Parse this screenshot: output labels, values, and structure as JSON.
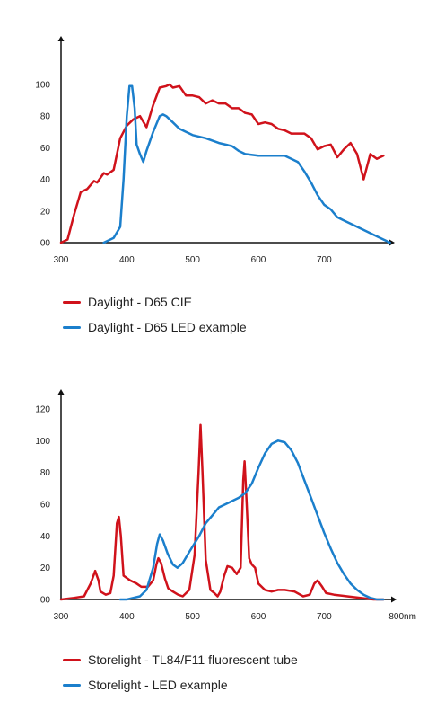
{
  "colors": {
    "red": "#d0121b",
    "blue": "#1b7fcc",
    "axis": "#111111"
  },
  "chart_data": [
    {
      "type": "line",
      "title": "",
      "xlabel": "",
      "ylabel": "",
      "xlim": [
        300,
        800
      ],
      "ylim": [
        0,
        100
      ],
      "xticks": [
        "300",
        "400",
        "500",
        "600",
        "700"
      ],
      "yticks": [
        "00",
        "20",
        "40",
        "60",
        "80",
        "100"
      ],
      "legend_position": "bottom",
      "series": [
        {
          "name": "Daylight - D65 CIE",
          "color": "red",
          "points": [
            [
              300,
              0
            ],
            [
              310,
              2
            ],
            [
              320,
              18
            ],
            [
              330,
              32
            ],
            [
              340,
              34
            ],
            [
              350,
              39
            ],
            [
              355,
              38
            ],
            [
              360,
              41
            ],
            [
              365,
              44
            ],
            [
              370,
              43
            ],
            [
              380,
              46
            ],
            [
              390,
              66
            ],
            [
              400,
              74
            ],
            [
              410,
              78
            ],
            [
              420,
              80
            ],
            [
              430,
              73
            ],
            [
              440,
              87
            ],
            [
              450,
              98
            ],
            [
              460,
              99
            ],
            [
              465,
              100
            ],
            [
              470,
              98
            ],
            [
              480,
              99
            ],
            [
              490,
              93
            ],
            [
              500,
              93
            ],
            [
              510,
              92
            ],
            [
              520,
              88
            ],
            [
              530,
              90
            ],
            [
              540,
              88
            ],
            [
              550,
              88
            ],
            [
              560,
              85
            ],
            [
              570,
              85
            ],
            [
              580,
              82
            ],
            [
              590,
              81
            ],
            [
              600,
              75
            ],
            [
              610,
              76
            ],
            [
              620,
              75
            ],
            [
              630,
              72
            ],
            [
              640,
              71
            ],
            [
              650,
              69
            ],
            [
              660,
              69
            ],
            [
              670,
              69
            ],
            [
              680,
              66
            ],
            [
              690,
              59
            ],
            [
              700,
              61
            ],
            [
              710,
              62
            ],
            [
              720,
              54
            ],
            [
              730,
              59
            ],
            [
              740,
              63
            ],
            [
              750,
              56
            ],
            [
              760,
              40
            ],
            [
              770,
              56
            ],
            [
              780,
              53
            ],
            [
              790,
              55
            ]
          ]
        },
        {
          "name": "Daylight - D65 LED example",
          "color": "blue",
          "points": [
            [
              365,
              0
            ],
            [
              380,
              3
            ],
            [
              390,
              10
            ],
            [
              395,
              40
            ],
            [
              400,
              80
            ],
            [
              404,
              99
            ],
            [
              408,
              99
            ],
            [
              412,
              85
            ],
            [
              415,
              62
            ],
            [
              420,
              56
            ],
            [
              425,
              51
            ],
            [
              430,
              58
            ],
            [
              440,
              70
            ],
            [
              450,
              80
            ],
            [
              455,
              81
            ],
            [
              460,
              80
            ],
            [
              470,
              76
            ],
            [
              480,
              72
            ],
            [
              490,
              70
            ],
            [
              500,
              68
            ],
            [
              520,
              66
            ],
            [
              540,
              63
            ],
            [
              560,
              61
            ],
            [
              570,
              58
            ],
            [
              580,
              56
            ],
            [
              600,
              55
            ],
            [
              620,
              55
            ],
            [
              640,
              55
            ],
            [
              650,
              53
            ],
            [
              660,
              51
            ],
            [
              670,
              45
            ],
            [
              680,
              38
            ],
            [
              690,
              30
            ],
            [
              700,
              24
            ],
            [
              710,
              21
            ],
            [
              720,
              16
            ],
            [
              740,
              12
            ],
            [
              760,
              8
            ],
            [
              780,
              4
            ],
            [
              800,
              0
            ]
          ]
        }
      ]
    },
    {
      "type": "line",
      "title": "",
      "xlabel": "",
      "ylabel": "",
      "xlim": [
        300,
        800
      ],
      "ylim": [
        0,
        120
      ],
      "xticks": [
        "300",
        "400",
        "500",
        "600",
        "700",
        "800nm"
      ],
      "yticks": [
        "00",
        "20",
        "40",
        "60",
        "80",
        "100",
        "120"
      ],
      "legend_position": "bottom",
      "series": [
        {
          "name": "Storelight - TL84/F11 fluorescent tube",
          "color": "red",
          "points": [
            [
              300,
              0
            ],
            [
              320,
              1
            ],
            [
              335,
              2
            ],
            [
              345,
              10
            ],
            [
              352,
              18
            ],
            [
              357,
              12
            ],
            [
              360,
              5
            ],
            [
              368,
              3
            ],
            [
              375,
              4
            ],
            [
              380,
              15
            ],
            [
              385,
              48
            ],
            [
              388,
              52
            ],
            [
              391,
              40
            ],
            [
              395,
              15
            ],
            [
              405,
              12
            ],
            [
              415,
              10
            ],
            [
              422,
              8
            ],
            [
              432,
              8
            ],
            [
              440,
              12
            ],
            [
              445,
              22
            ],
            [
              448,
              26
            ],
            [
              452,
              23
            ],
            [
              458,
              13
            ],
            [
              463,
              7
            ],
            [
              470,
              5
            ],
            [
              478,
              3
            ],
            [
              485,
              2
            ],
            [
              495,
              6
            ],
            [
              503,
              28
            ],
            [
              509,
              80
            ],
            [
              512,
              110
            ],
            [
              515,
              80
            ],
            [
              520,
              25
            ],
            [
              527,
              6
            ],
            [
              533,
              4
            ],
            [
              538,
              2
            ],
            [
              542,
              5
            ],
            [
              548,
              15
            ],
            [
              553,
              21
            ],
            [
              560,
              20
            ],
            [
              567,
              16
            ],
            [
              573,
              20
            ],
            [
              577,
              75
            ],
            [
              579,
              87
            ],
            [
              582,
              62
            ],
            [
              586,
              26
            ],
            [
              590,
              22
            ],
            [
              595,
              20
            ],
            [
              600,
              10
            ],
            [
              610,
              6
            ],
            [
              620,
              5
            ],
            [
              630,
              6
            ],
            [
              640,
              6
            ],
            [
              655,
              5
            ],
            [
              668,
              2
            ],
            [
              678,
              3
            ],
            [
              685,
              10
            ],
            [
              690,
              12
            ],
            [
              697,
              8
            ],
            [
              703,
              4
            ],
            [
              715,
              3
            ],
            [
              735,
              2
            ],
            [
              755,
              1
            ],
            [
              775,
              0
            ],
            [
              790,
              0
            ]
          ]
        },
        {
          "name": "Storelight - LED example",
          "color": "blue",
          "points": [
            [
              390,
              0
            ],
            [
              400,
              0
            ],
            [
              410,
              1
            ],
            [
              420,
              2
            ],
            [
              430,
              6
            ],
            [
              440,
              20
            ],
            [
              446,
              35
            ],
            [
              450,
              41
            ],
            [
              455,
              37
            ],
            [
              462,
              29
            ],
            [
              470,
              22
            ],
            [
              477,
              20
            ],
            [
              485,
              23
            ],
            [
              495,
              30
            ],
            [
              510,
              40
            ],
            [
              520,
              48
            ],
            [
              530,
              53
            ],
            [
              540,
              58
            ],
            [
              555,
              61
            ],
            [
              570,
              64
            ],
            [
              580,
              67
            ],
            [
              590,
              73
            ],
            [
              600,
              83
            ],
            [
              610,
              92
            ],
            [
              620,
              98
            ],
            [
              630,
              100
            ],
            [
              640,
              99
            ],
            [
              650,
              94
            ],
            [
              660,
              86
            ],
            [
              670,
              75
            ],
            [
              680,
              64
            ],
            [
              690,
              53
            ],
            [
              700,
              42
            ],
            [
              710,
              32
            ],
            [
              720,
              23
            ],
            [
              730,
              16
            ],
            [
              740,
              10
            ],
            [
              750,
              6
            ],
            [
              760,
              3
            ],
            [
              770,
              1
            ],
            [
              780,
              0
            ],
            [
              790,
              0
            ]
          ]
        }
      ]
    }
  ]
}
